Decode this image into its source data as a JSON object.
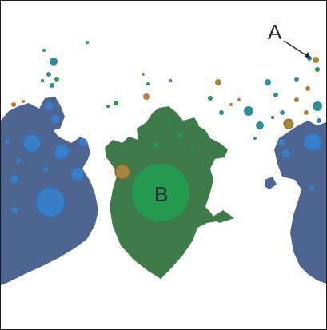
{
  "labels": {
    "a": "A",
    "b": "B"
  },
  "colors": {
    "blue_region": "#4e6591",
    "blue_node": "#3a7ec8",
    "blue_node_stroke": "#2f6fb8",
    "green_region": "#3f7a4b",
    "green_node": "#239a4e",
    "olive_node": "#a8843c",
    "teal_node": "#2e8f99",
    "orange_node": "#c9703a",
    "annotation": "#1f2a33"
  }
}
